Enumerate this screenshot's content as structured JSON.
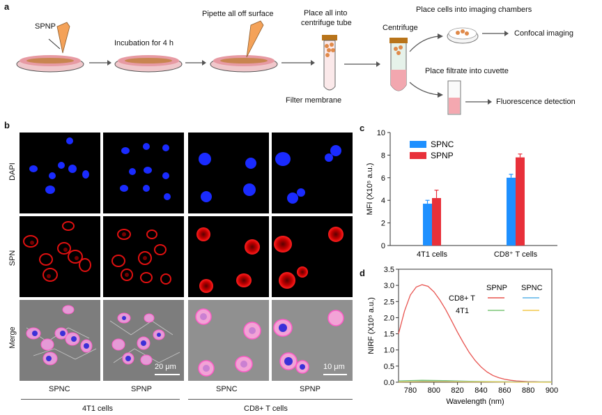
{
  "panel_letters": {
    "a": "a",
    "b": "b",
    "c": "c",
    "d": "d"
  },
  "workflow": {
    "spnp_label": "SPNP",
    "incubation": "Incubation for 4 h",
    "pipette": "Pipette all off surface",
    "place_tube_1": "Place all into",
    "place_tube_2": "centrifuge tube",
    "filter_membrane": "Filter membrane",
    "centrifuge": "Centrifuge",
    "place_cells": "Place cells into imaging chambers",
    "confocal": "Confocal imaging",
    "place_filtrate": "Place filtrate into cuvette",
    "fluorescence": "Fluorescence detection"
  },
  "microscopy": {
    "row_labels": [
      "DAPI",
      "SPN",
      "Merge"
    ],
    "column_labels": [
      "SPNC",
      "SPNP",
      "SPNC",
      "SPNP"
    ],
    "group_labels": [
      "4T1 cells",
      "CD8+ T cells"
    ],
    "scale_bar_1": "20 μm",
    "scale_bar_2": "10 μm"
  },
  "colors": {
    "spnc": "#1e90ff",
    "spnp": "#e8303a",
    "nirf_spnp_cd8": "#e8534f",
    "nirf_spnp_4t1": "#7cc576",
    "nirf_spnc_cd8": "#5ab4e8",
    "nirf_spnc_4t1": "#f2c94c"
  },
  "chart_data": [
    {
      "type": "bar",
      "panel": "c",
      "ylabel": "MFI (X10⁵ a.u.)",
      "categories": [
        "4T1 cells",
        "CD8⁺ T cells"
      ],
      "series": [
        {
          "name": "SPNC",
          "values": [
            3.7,
            6.0
          ],
          "errors": [
            0.3,
            0.3
          ]
        },
        {
          "name": "SPNP",
          "values": [
            4.2,
            7.8
          ],
          "errors": [
            0.7,
            0.3
          ]
        }
      ],
      "ylim": [
        0,
        10
      ],
      "yticks": [
        0,
        2,
        4,
        6,
        8,
        10
      ],
      "legend": "top-left"
    },
    {
      "type": "line",
      "panel": "d",
      "xlabel": "Wavelength (nm)",
      "ylabel": "NIRF (X10⁵ a.u.)",
      "xlim": [
        770,
        900
      ],
      "ylim": [
        0,
        3.5
      ],
      "xticks": [
        780,
        800,
        820,
        840,
        860,
        880,
        900
      ],
      "yticks": [
        0.0,
        0.5,
        1.0,
        1.5,
        2.0,
        2.5,
        3.0,
        3.5
      ],
      "legend_headers": [
        "SPNP",
        "SPNC"
      ],
      "legend_rows": [
        "CD8+ T",
        "4T1"
      ],
      "series": [
        {
          "name": "SPNP CD8+ T",
          "x": [
            770,
            775,
            780,
            785,
            790,
            795,
            800,
            805,
            810,
            815,
            820,
            825,
            830,
            835,
            840,
            845,
            850,
            855,
            860,
            865,
            870,
            875,
            880,
            885,
            890,
            895,
            900
          ],
          "y": [
            1.5,
            2.2,
            2.7,
            2.95,
            3.02,
            2.97,
            2.8,
            2.55,
            2.25,
            1.9,
            1.55,
            1.22,
            0.92,
            0.67,
            0.47,
            0.32,
            0.21,
            0.14,
            0.09,
            0.06,
            0.04,
            0.03,
            0.02,
            0.02,
            0.01,
            0.01,
            0.01
          ]
        },
        {
          "name": "SPNP 4T1",
          "x": [
            770,
            790,
            810,
            830,
            850,
            870,
            900
          ],
          "y": [
            0.04,
            0.06,
            0.05,
            0.03,
            0.02,
            0.01,
            0.01
          ]
        },
        {
          "name": "SPNC CD8+ T",
          "x": [
            770,
            790,
            810,
            830,
            850,
            870,
            900
          ],
          "y": [
            0.02,
            0.03,
            0.03,
            0.02,
            0.01,
            0.01,
            0.0
          ]
        },
        {
          "name": "SPNC 4T1",
          "x": [
            770,
            790,
            810,
            830,
            850,
            870,
            900
          ],
          "y": [
            0.01,
            0.02,
            0.02,
            0.01,
            0.01,
            0.0,
            0.0
          ]
        }
      ]
    }
  ]
}
